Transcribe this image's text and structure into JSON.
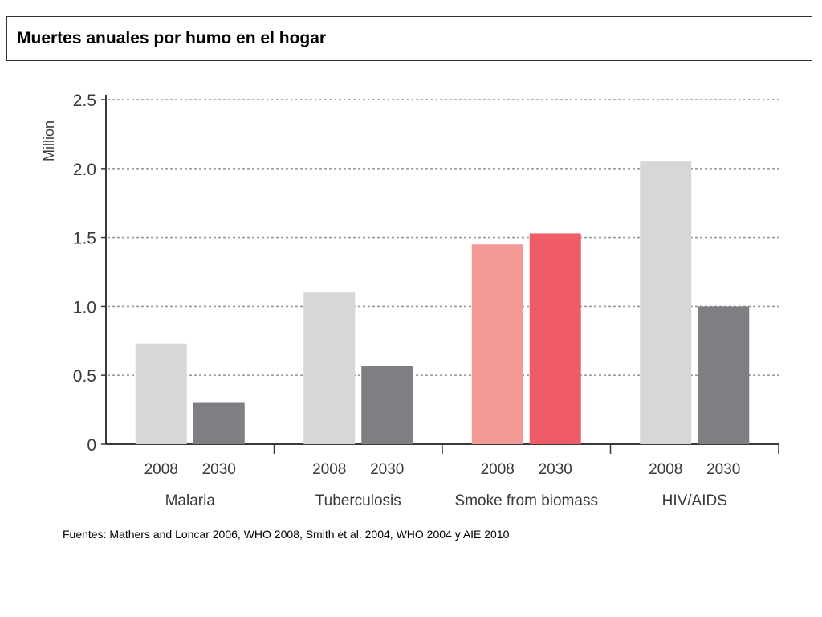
{
  "slide": {
    "title": "Muertes anuales por humo en el hogar",
    "source": "Fuentes: Mathers and Loncar 2006, WHO 2008, Smith et al. 2004, WHO 2004 y AIE 2010"
  },
  "chart_data": {
    "type": "bar",
    "ylabel": "Million",
    "xlabel": "",
    "ylim": [
      0,
      2.5
    ],
    "yticks": [
      "0",
      "0.5",
      "1.0",
      "1.5",
      "2.0",
      "2.5"
    ],
    "grid": true,
    "groups": [
      {
        "label": "Malaria",
        "bars": [
          {
            "year": "2008",
            "value": 0.73,
            "color": "#d6d7d9"
          },
          {
            "year": "2030",
            "value": 0.3,
            "color": "#7e7f83"
          }
        ]
      },
      {
        "label": "Tuberculosis",
        "bars": [
          {
            "year": "2008",
            "value": 1.1,
            "color": "#d6d7d9"
          },
          {
            "year": "2030",
            "value": 0.57,
            "color": "#7e7f83"
          }
        ]
      },
      {
        "label": "Smoke from biomass",
        "bars": [
          {
            "year": "2008",
            "value": 1.45,
            "color": "#f29b96"
          },
          {
            "year": "2030",
            "value": 1.53,
            "color": "#ef5b67"
          }
        ]
      },
      {
        "label": "HIV/AIDS",
        "bars": [
          {
            "year": "2008",
            "value": 2.05,
            "color": "#d6d7d9"
          },
          {
            "year": "2030",
            "value": 1.0,
            "color": "#7e7f83"
          }
        ]
      }
    ]
  }
}
